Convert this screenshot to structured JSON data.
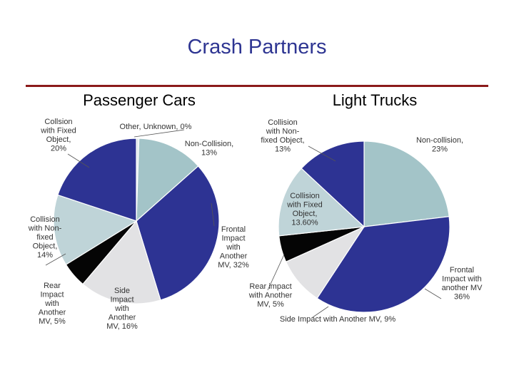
{
  "title": "Crash Partners",
  "chart_data": [
    {
      "type": "pie",
      "title": "Passenger Cars",
      "slices": [
        {
          "name": "Other, Unknown, 0%",
          "value": 0.5,
          "color": "#dfe9ea"
        },
        {
          "name": "Non-Collision, 13%",
          "value": 13,
          "color": "#a3c4c8"
        },
        {
          "name": "Frontal Impact with Another MV, 32%",
          "value": 32,
          "color": "#2d3393"
        },
        {
          "name": "Side Impact with Another MV, 16%",
          "value": 16,
          "color": "#e2e2e4"
        },
        {
          "name": "Rear Impact with Another MV, 5%",
          "value": 5,
          "color": "#050505"
        },
        {
          "name": "Collision with Non-fixed Object, 14%",
          "value": 14,
          "color": "#bfd4d8"
        },
        {
          "name": "Collsion with Fixed Object, 20%",
          "value": 20,
          "color": "#2d3393"
        }
      ]
    },
    {
      "type": "pie",
      "title": "Light Trucks",
      "slices": [
        {
          "name": "Non-collision, 23%",
          "value": 23,
          "color": "#a3c4c8"
        },
        {
          "name": "Frontal Impact with another MV 36%",
          "value": 36,
          "color": "#2d3393"
        },
        {
          "name": "Side Impact with Another MV, 9%",
          "value": 9,
          "color": "#e2e2e4"
        },
        {
          "name": "Rear impact with Another MV, 5%",
          "value": 5,
          "color": "#050505"
        },
        {
          "name": "Collision with Fixed Object, 13.60%",
          "value": 13.6,
          "color": "#bfd4d8"
        },
        {
          "name": "Collision with Non-fixed Object, 13%",
          "value": 13,
          "color": "#2d3393"
        }
      ]
    }
  ],
  "labels": {
    "cars": {
      "other": [
        "Other, Unknown, 0%"
      ],
      "noncollision": [
        "Non-Collision,",
        "13%"
      ],
      "frontal": [
        "Frontal",
        "Impact",
        "with",
        "Another",
        "MV, 32%"
      ],
      "side": [
        "Side",
        "Impact",
        "with",
        "Another",
        "MV, 16%"
      ],
      "rear": [
        "Rear",
        "Impact",
        "with",
        "Another",
        "MV, 5%"
      ],
      "nonfixed": [
        "Collision",
        "with Non-",
        "fixed",
        "Object,",
        "14%"
      ],
      "fixed": [
        "Collsion",
        "with Fixed",
        "Object,",
        "20%"
      ]
    },
    "trucks": {
      "nonfixed": [
        "Collision",
        "with Non-",
        "fixed Object,",
        "13%"
      ],
      "noncollision": [
        "Non-collision,",
        "23%"
      ],
      "fixed": [
        "Collision",
        "with Fixed",
        "Object,",
        "13.60%"
      ],
      "rear": [
        "Rear impact",
        "with Another",
        "MV, 5%"
      ],
      "side": [
        "Side Impact with Another MV, 9%"
      ],
      "frontal": [
        "Frontal",
        "Impact with",
        "another MV",
        "36%"
      ]
    }
  }
}
